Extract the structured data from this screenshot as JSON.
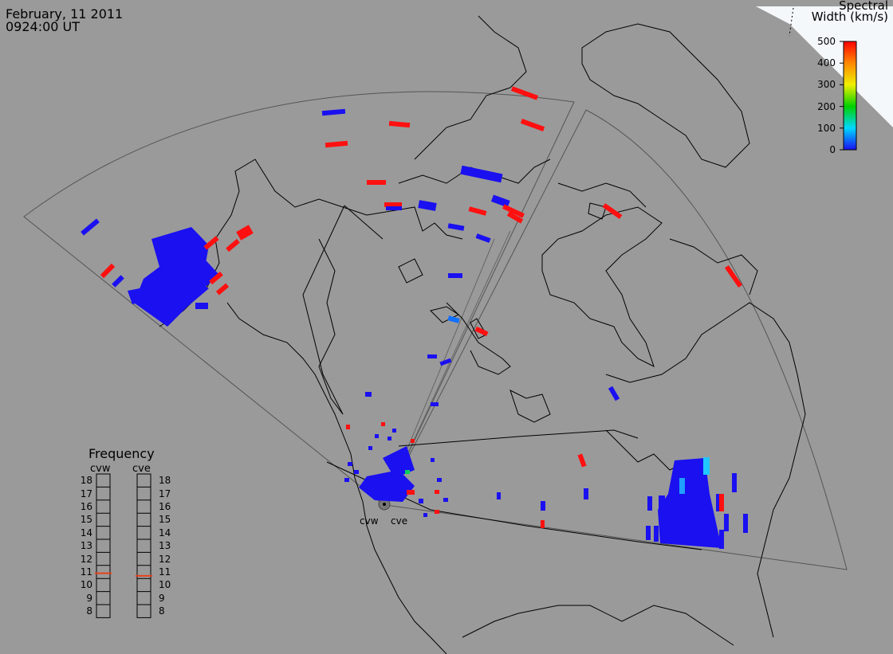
{
  "header": {
    "date": "February, 11 2011",
    "time": "0924:00 UT"
  },
  "colorbar": {
    "title_line1": "Spectral",
    "title_line2": "Width (km/s)",
    "ticks": [
      "500",
      "400",
      "300",
      "200",
      "100",
      "0"
    ],
    "min": 0,
    "max": 500
  },
  "stations": {
    "west": "cvw",
    "east": "cve"
  },
  "frequency_panel": {
    "title": "Frequency",
    "col_west": "cvw",
    "col_east": "cve",
    "scale": [
      "18",
      "17",
      "16",
      "15",
      "14",
      "13",
      "12",
      "11",
      "10",
      "9",
      "8"
    ],
    "scale_min": 8,
    "scale_max": 18,
    "cvw_value": 10.9,
    "cve_value": 10.7,
    "marker_color": "#e8421c"
  },
  "colors": {
    "background": "#9a9a9a",
    "coast": "#000000",
    "low_width": "#1a10f0",
    "high_width": "#ff1010"
  }
}
